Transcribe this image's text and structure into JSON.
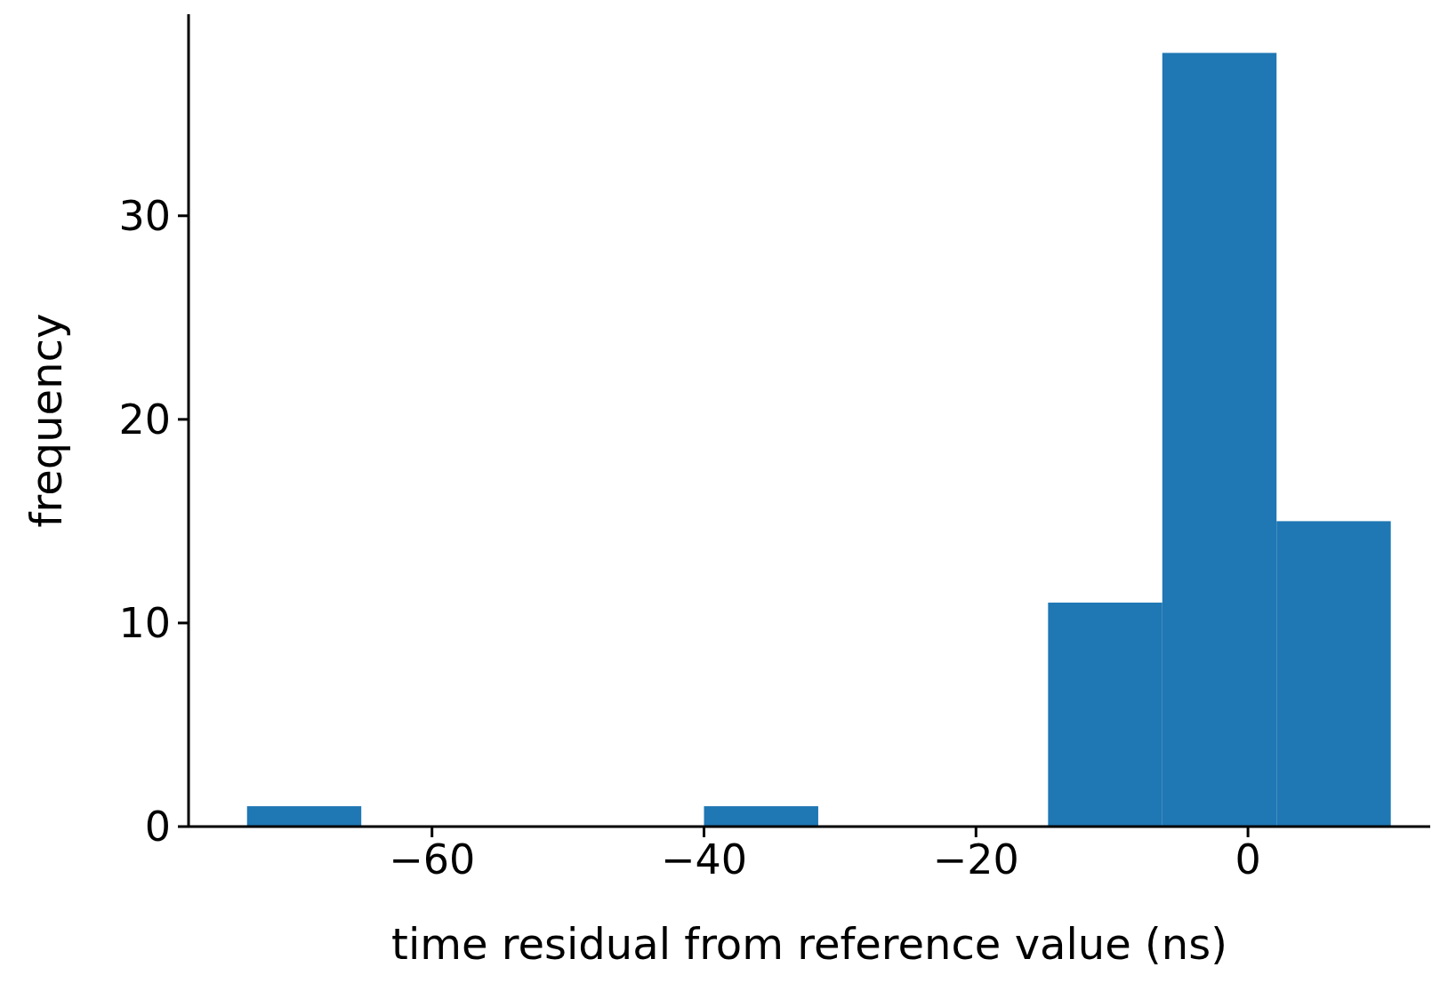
{
  "chart_data": {
    "type": "histogram",
    "xlabel": "time residual from reference value (ns)",
    "ylabel": "frequency",
    "bins": [
      -73.6,
      -65.2,
      -40.0,
      -31.6,
      -14.7,
      -6.3,
      2.1,
      10.5
    ],
    "values": [
      1,
      0,
      1,
      0,
      11,
      38,
      15
    ],
    "color": "#1f77b4",
    "xlim": [
      -77.9,
      13.4
    ],
    "ylim": [
      0,
      39.9
    ],
    "xticks": [
      -60,
      -40,
      -20,
      0
    ],
    "yticks": [
      0,
      10,
      20,
      30
    ],
    "grid": false,
    "legend": false
  }
}
